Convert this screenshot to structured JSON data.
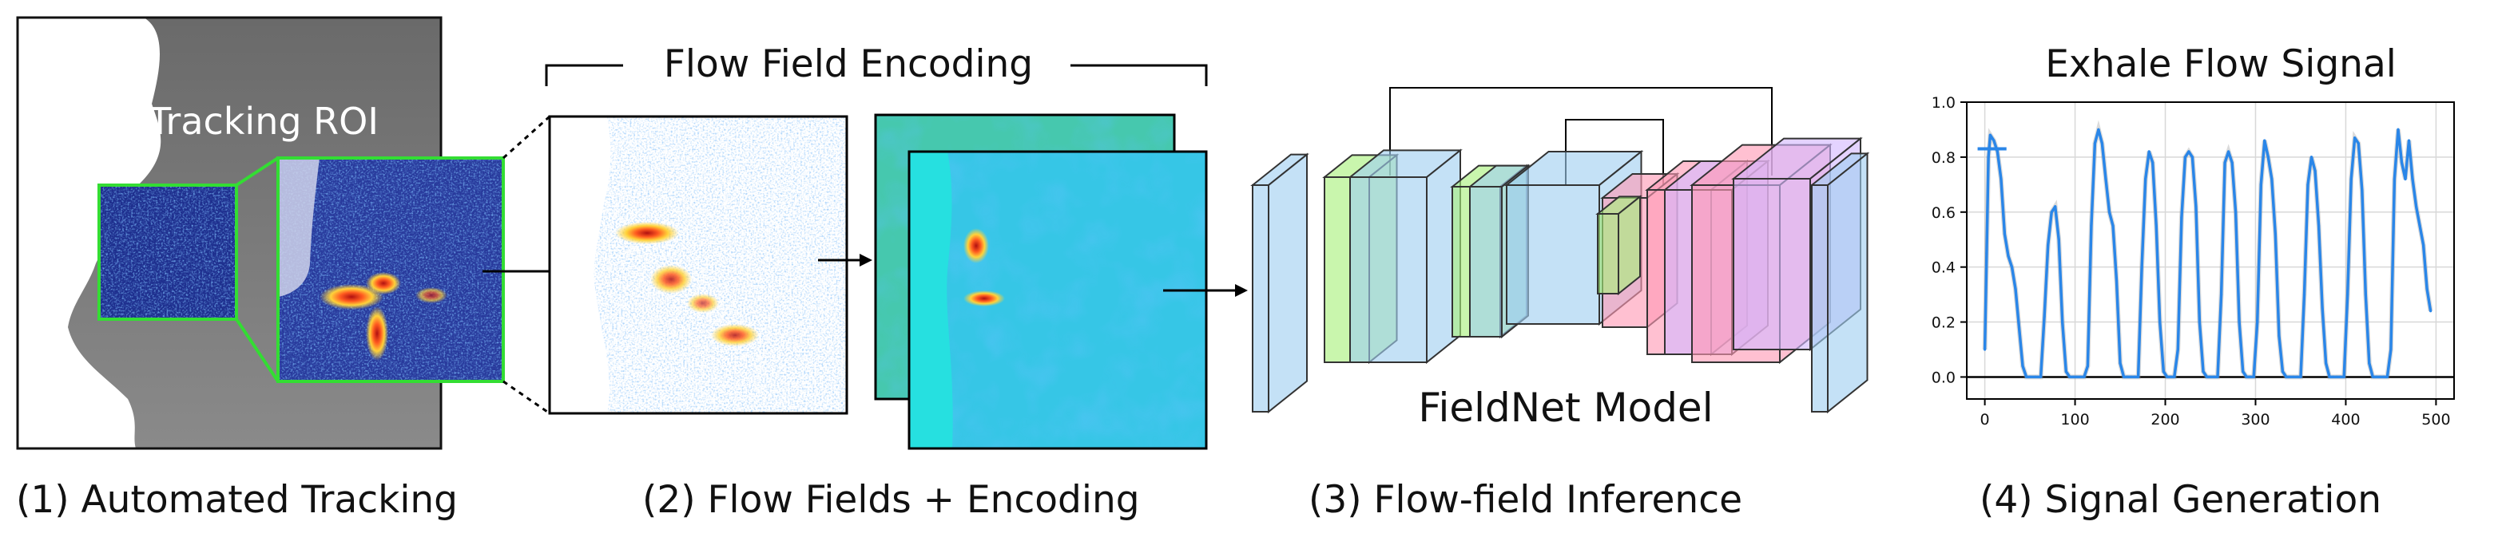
{
  "panel1": {
    "roi_label": "Tracking ROI",
    "caption": "(1) Automated Tracking"
  },
  "panel2": {
    "title": "Flow Field Encoding",
    "caption": "(2) Flow Fields + Encoding"
  },
  "panel3": {
    "model_label": "FieldNet Model",
    "caption": "(3) Flow-field Inference"
  },
  "panel4": {
    "title": "Exhale Flow Signal",
    "caption": "(4) Signal Generation"
  },
  "colors": {
    "roi_outline": "#33dd33",
    "signal_line": "#2a86e8",
    "net_blue": "#9fcff0",
    "net_green": "#a8f07a",
    "net_pink": "#ff9ab4",
    "net_violet": "#d3b8ff"
  },
  "chart_data": {
    "type": "line",
    "title": "Exhale Flow Signal",
    "xlabel": "",
    "ylabel": "",
    "xlim": [
      -20,
      520
    ],
    "ylim": [
      -0.08,
      1.0
    ],
    "x_ticks": [
      "0",
      "100",
      "200",
      "300",
      "400",
      "500"
    ],
    "y_ticks": [
      "0.0",
      "0.2",
      "0.4",
      "0.6",
      "0.8",
      "1.0"
    ],
    "grid": true,
    "series": [
      {
        "color": "#2a86e8",
        "x": [
          0,
          2,
          4,
          6,
          10,
          14,
          18,
          22,
          26,
          30,
          34,
          38,
          42,
          46,
          50,
          56,
          62,
          66,
          70,
          74,
          78,
          82,
          86,
          90,
          94,
          98,
          102,
          106,
          110,
          114,
          118,
          122,
          126,
          130,
          134,
          138,
          142,
          146,
          150,
          154,
          158,
          162,
          166,
          170,
          174,
          178,
          182,
          186,
          190,
          194,
          198,
          202,
          206,
          210,
          214,
          218,
          222,
          226,
          230,
          234,
          238,
          242,
          246,
          250,
          254,
          258,
          262,
          266,
          270,
          274,
          278,
          282,
          286,
          290,
          294,
          298,
          302,
          306,
          310,
          314,
          318,
          322,
          326,
          330,
          334,
          338,
          342,
          346,
          350,
          354,
          358,
          362,
          366,
          370,
          374,
          378,
          382,
          386,
          390,
          394,
          398,
          402,
          406,
          410,
          414,
          418,
          422,
          426,
          430,
          434,
          438,
          442,
          446,
          450,
          454,
          458,
          462,
          466,
          470,
          474,
          478,
          482,
          486,
          490,
          494
        ],
        "values": [
          0.1,
          0.45,
          0.8,
          0.88,
          0.86,
          0.82,
          0.72,
          0.52,
          0.44,
          0.4,
          0.32,
          0.18,
          0.04,
          0.0,
          0.0,
          0.0,
          0.0,
          0.22,
          0.48,
          0.6,
          0.62,
          0.5,
          0.2,
          0.02,
          0.0,
          0.0,
          0.0,
          0.0,
          0.0,
          0.04,
          0.55,
          0.85,
          0.9,
          0.85,
          0.72,
          0.6,
          0.55,
          0.35,
          0.05,
          0.0,
          0.0,
          0.0,
          0.0,
          0.0,
          0.4,
          0.72,
          0.82,
          0.78,
          0.55,
          0.2,
          0.02,
          0.0,
          0.0,
          0.0,
          0.1,
          0.58,
          0.8,
          0.82,
          0.8,
          0.62,
          0.2,
          0.02,
          0.0,
          0.0,
          0.0,
          0.0,
          0.3,
          0.78,
          0.82,
          0.78,
          0.6,
          0.2,
          0.02,
          0.0,
          0.0,
          0.0,
          0.2,
          0.7,
          0.86,
          0.8,
          0.72,
          0.52,
          0.15,
          0.02,
          0.0,
          0.0,
          0.0,
          0.0,
          0.0,
          0.3,
          0.7,
          0.8,
          0.75,
          0.55,
          0.25,
          0.05,
          0.0,
          0.0,
          0.0,
          0.0,
          0.0,
          0.3,
          0.72,
          0.87,
          0.85,
          0.68,
          0.3,
          0.05,
          0.0,
          0.0,
          0.0,
          0.0,
          0.0,
          0.1,
          0.72,
          0.9,
          0.78,
          0.72,
          0.86,
          0.72,
          0.62,
          0.55,
          0.48,
          0.32,
          0.24
        ]
      }
    ]
  }
}
